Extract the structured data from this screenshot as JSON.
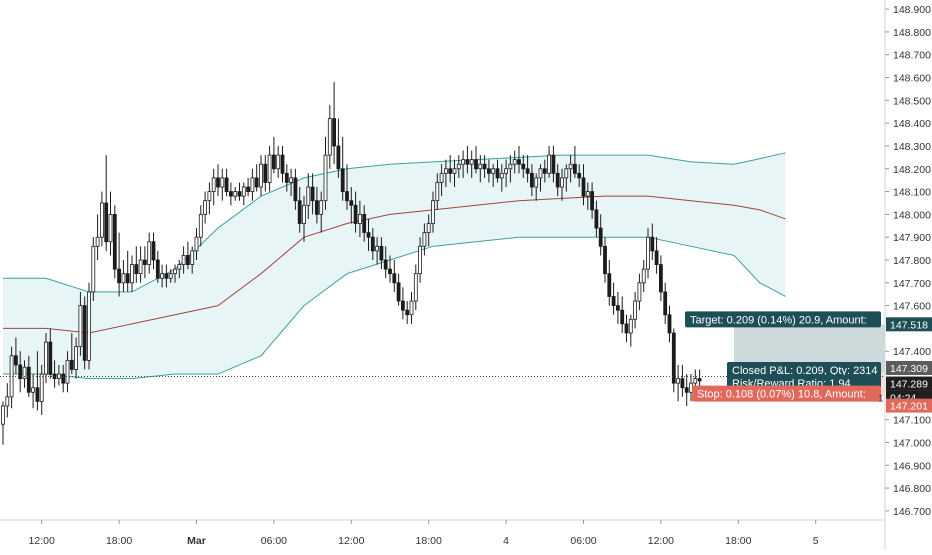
{
  "colors": {
    "candle": "#1c1c1c",
    "band_fill": "#e8f5f7",
    "band_line": "#3aa39a",
    "mid_line": "#a0453d",
    "target_zone": "#c4d4d6",
    "stop_zone": "#f7d9d6",
    "target_label": "#1e4f57",
    "stop_label": "#e0695c",
    "dark_label": "#1f1f1f",
    "axis_text": "#333333"
  },
  "chart_data": {
    "type": "candlestick",
    "y_axis": {
      "min": 146.66,
      "max": 148.94,
      "ticks": [
        "148.900",
        "148.800",
        "148.700",
        "148.600",
        "148.500",
        "148.400",
        "148.300",
        "148.200",
        "148.100",
        "148.000",
        "147.900",
        "147.800",
        "147.700",
        "147.600",
        "147.400",
        "147.100",
        "147.000",
        "146.900",
        "146.800",
        "146.700"
      ]
    },
    "x_axis": {
      "ticks": [
        {
          "label": "12:00",
          "i": 9
        },
        {
          "label": "18:00",
          "i": 27
        },
        {
          "label": "Mar",
          "i": 45,
          "bold": true
        },
        {
          "label": "06:00",
          "i": 63
        },
        {
          "label": "12:00",
          "i": 81
        },
        {
          "label": "18:00",
          "i": 99
        },
        {
          "label": "4",
          "i": 117
        },
        {
          "label": "06:00",
          "i": 135
        },
        {
          "label": "12:00",
          "i": 153
        },
        {
          "label": "18:00",
          "i": 171
        },
        {
          "label": "5",
          "i": 189
        }
      ]
    },
    "candles": [
      [
        147.08,
        147.18,
        146.99,
        147.16
      ],
      [
        147.16,
        147.26,
        147.11,
        147.2
      ],
      [
        147.2,
        147.42,
        147.15,
        147.38
      ],
      [
        147.38,
        147.46,
        147.3,
        147.34
      ],
      [
        147.34,
        147.4,
        147.22,
        147.28
      ],
      [
        147.28,
        147.36,
        147.24,
        147.33
      ],
      [
        147.33,
        147.38,
        147.2,
        147.22
      ],
      [
        147.22,
        147.3,
        147.15,
        147.24
      ],
      [
        147.24,
        147.4,
        147.14,
        147.18
      ],
      [
        147.18,
        147.34,
        147.12,
        147.3
      ],
      [
        147.3,
        147.48,
        147.26,
        147.44
      ],
      [
        147.44,
        147.5,
        147.28,
        147.3
      ],
      [
        147.3,
        147.36,
        147.24,
        147.28
      ],
      [
        147.28,
        147.34,
        147.25,
        147.3
      ],
      [
        147.3,
        147.34,
        147.22,
        147.26
      ],
      [
        147.26,
        147.4,
        147.22,
        147.36
      ],
      [
        147.36,
        147.48,
        147.3,
        147.32
      ],
      [
        147.32,
        147.46,
        147.28,
        147.42
      ],
      [
        147.42,
        147.66,
        147.38,
        147.6
      ],
      [
        147.6,
        147.64,
        147.32,
        147.36
      ],
      [
        147.36,
        147.7,
        147.32,
        147.66
      ],
      [
        147.66,
        147.9,
        147.62,
        147.86
      ],
      [
        147.86,
        148.0,
        147.8,
        147.9
      ],
      [
        147.9,
        148.1,
        147.86,
        148.05
      ],
      [
        148.05,
        148.26,
        147.84,
        147.88
      ],
      [
        147.88,
        148.1,
        147.82,
        148.0
      ],
      [
        148.0,
        148.04,
        147.72,
        147.76
      ],
      [
        147.76,
        147.92,
        147.64,
        147.7
      ],
      [
        147.7,
        147.8,
        147.66,
        147.74
      ],
      [
        147.74,
        147.84,
        147.66,
        147.7
      ],
      [
        147.7,
        147.82,
        147.66,
        147.78
      ],
      [
        147.78,
        147.86,
        147.7,
        147.74
      ],
      [
        147.74,
        147.86,
        147.7,
        147.8
      ],
      [
        147.8,
        147.86,
        147.72,
        147.78
      ],
      [
        147.78,
        147.92,
        147.74,
        147.88
      ],
      [
        147.88,
        147.92,
        147.76,
        147.8
      ],
      [
        147.8,
        147.84,
        147.7,
        147.72
      ],
      [
        147.72,
        147.78,
        147.68,
        147.74
      ],
      [
        147.74,
        147.78,
        147.68,
        147.72
      ],
      [
        147.72,
        147.76,
        147.7,
        147.74
      ],
      [
        147.74,
        147.78,
        147.7,
        147.76
      ],
      [
        147.76,
        147.8,
        147.72,
        147.78
      ],
      [
        147.78,
        147.86,
        147.74,
        147.82
      ],
      [
        147.82,
        147.88,
        147.76,
        147.78
      ],
      [
        147.78,
        147.86,
        147.74,
        147.84
      ],
      [
        147.84,
        147.94,
        147.8,
        147.9
      ],
      [
        147.9,
        148.04,
        147.86,
        148.0
      ],
      [
        148.0,
        148.1,
        147.96,
        148.06
      ],
      [
        148.06,
        148.14,
        148.0,
        148.1
      ],
      [
        148.1,
        148.2,
        148.04,
        148.16
      ],
      [
        148.16,
        148.22,
        148.08,
        148.12
      ],
      [
        148.12,
        148.2,
        148.06,
        148.16
      ],
      [
        148.16,
        148.2,
        148.08,
        148.1
      ],
      [
        148.1,
        148.14,
        148.04,
        148.08
      ],
      [
        148.08,
        148.12,
        148.06,
        148.1
      ],
      [
        148.1,
        148.14,
        148.06,
        148.08
      ],
      [
        148.08,
        148.14,
        148.04,
        148.12
      ],
      [
        148.12,
        148.16,
        148.08,
        148.1
      ],
      [
        148.1,
        148.2,
        148.06,
        148.16
      ],
      [
        148.16,
        148.22,
        148.1,
        148.12
      ],
      [
        148.12,
        148.26,
        148.08,
        148.22
      ],
      [
        148.22,
        148.26,
        148.1,
        148.14
      ],
      [
        148.14,
        148.3,
        148.1,
        148.26
      ],
      [
        148.26,
        148.34,
        148.18,
        148.2
      ],
      [
        148.2,
        148.3,
        148.16,
        148.26
      ],
      [
        148.26,
        148.3,
        148.14,
        148.18
      ],
      [
        148.18,
        148.22,
        148.1,
        148.14
      ],
      [
        148.14,
        148.2,
        148.08,
        148.16
      ],
      [
        148.16,
        148.2,
        148.02,
        148.06
      ],
      [
        148.06,
        148.12,
        147.92,
        147.96
      ],
      [
        147.96,
        148.08,
        147.88,
        148.04
      ],
      [
        148.04,
        148.18,
        147.98,
        148.12
      ],
      [
        148.12,
        148.18,
        148.0,
        148.06
      ],
      [
        148.06,
        148.12,
        147.96,
        148.0
      ],
      [
        148.0,
        148.1,
        147.92,
        148.06
      ],
      [
        148.06,
        148.34,
        148.02,
        148.26
      ],
      [
        148.26,
        148.48,
        148.2,
        148.42
      ],
      [
        148.42,
        148.58,
        148.22,
        148.3
      ],
      [
        148.3,
        148.42,
        148.16,
        148.2
      ],
      [
        148.2,
        148.34,
        148.06,
        148.1
      ],
      [
        148.1,
        148.22,
        148.02,
        148.06
      ],
      [
        148.06,
        148.12,
        147.96,
        148.04
      ],
      [
        148.04,
        148.1,
        147.92,
        147.96
      ],
      [
        147.96,
        148.06,
        147.9,
        148.0
      ],
      [
        148.0,
        148.04,
        147.88,
        147.92
      ],
      [
        147.92,
        147.98,
        147.84,
        147.9
      ],
      [
        147.9,
        147.94,
        147.8,
        147.84
      ],
      [
        147.84,
        147.9,
        147.78,
        147.86
      ],
      [
        147.86,
        147.9,
        147.76,
        147.8
      ],
      [
        147.8,
        147.86,
        147.72,
        147.76
      ],
      [
        147.76,
        147.82,
        147.7,
        147.74
      ],
      [
        147.74,
        147.8,
        147.66,
        147.7
      ],
      [
        147.7,
        147.74,
        147.6,
        147.62
      ],
      [
        147.62,
        147.68,
        147.54,
        147.58
      ],
      [
        147.58,
        147.62,
        147.52,
        147.56
      ],
      [
        147.56,
        147.66,
        147.52,
        147.62
      ],
      [
        147.62,
        147.78,
        147.58,
        147.74
      ],
      [
        147.74,
        147.9,
        147.7,
        147.86
      ],
      [
        147.86,
        147.96,
        147.82,
        147.92
      ],
      [
        147.92,
        148.0,
        147.86,
        147.96
      ],
      [
        147.96,
        148.1,
        147.92,
        148.06
      ],
      [
        148.06,
        148.18,
        148.02,
        148.14
      ],
      [
        148.14,
        148.22,
        148.08,
        148.18
      ],
      [
        148.18,
        148.24,
        148.12,
        148.2
      ],
      [
        148.2,
        148.26,
        148.14,
        148.18
      ],
      [
        148.18,
        148.24,
        148.12,
        148.2
      ],
      [
        148.2,
        148.26,
        148.16,
        148.22
      ],
      [
        148.22,
        148.28,
        148.16,
        148.24
      ],
      [
        148.24,
        148.3,
        148.18,
        148.22
      ],
      [
        148.22,
        148.28,
        148.16,
        148.24
      ],
      [
        148.24,
        148.3,
        148.18,
        148.2
      ],
      [
        148.2,
        148.26,
        148.14,
        148.22
      ],
      [
        148.22,
        148.26,
        148.16,
        148.2
      ],
      [
        148.2,
        148.24,
        148.14,
        148.18
      ],
      [
        148.18,
        148.22,
        148.12,
        148.2
      ],
      [
        148.2,
        148.24,
        148.14,
        148.16
      ],
      [
        148.16,
        148.22,
        148.1,
        148.18
      ],
      [
        148.18,
        148.24,
        148.12,
        148.2
      ],
      [
        148.2,
        148.26,
        148.14,
        148.22
      ],
      [
        148.22,
        148.28,
        148.18,
        148.24
      ],
      [
        148.24,
        148.3,
        148.18,
        148.22
      ],
      [
        148.22,
        148.26,
        148.16,
        148.2
      ],
      [
        148.2,
        148.26,
        148.14,
        148.18
      ],
      [
        148.18,
        148.22,
        148.08,
        148.12
      ],
      [
        148.12,
        148.18,
        148.06,
        148.16
      ],
      [
        148.16,
        148.22,
        148.1,
        148.2
      ],
      [
        148.2,
        148.24,
        148.14,
        148.18
      ],
      [
        148.18,
        148.3,
        148.16,
        148.26
      ],
      [
        148.26,
        148.3,
        148.14,
        148.18
      ],
      [
        148.18,
        148.22,
        148.08,
        148.12
      ],
      [
        148.12,
        148.2,
        148.06,
        148.16
      ],
      [
        148.16,
        148.22,
        148.1,
        148.2
      ],
      [
        148.2,
        148.26,
        148.14,
        148.22
      ],
      [
        148.22,
        148.3,
        148.16,
        148.18
      ],
      [
        148.18,
        148.22,
        148.12,
        148.16
      ],
      [
        148.16,
        148.22,
        148.04,
        148.08
      ],
      [
        148.08,
        148.14,
        148.02,
        148.1
      ],
      [
        148.1,
        148.14,
        147.98,
        148.02
      ],
      [
        148.02,
        148.06,
        147.9,
        147.94
      ],
      [
        147.94,
        148.0,
        147.82,
        147.86
      ],
      [
        147.86,
        147.9,
        147.7,
        147.74
      ],
      [
        147.74,
        147.8,
        147.6,
        147.64
      ],
      [
        147.64,
        147.7,
        147.56,
        147.6
      ],
      [
        147.6,
        147.66,
        147.52,
        147.58
      ],
      [
        147.58,
        147.64,
        147.48,
        147.52
      ],
      [
        147.52,
        147.56,
        147.44,
        147.48
      ],
      [
        147.48,
        147.56,
        147.42,
        147.54
      ],
      [
        147.54,
        147.66,
        147.5,
        147.62
      ],
      [
        147.62,
        147.74,
        147.58,
        147.7
      ],
      [
        147.7,
        147.8,
        147.66,
        147.76
      ],
      [
        147.76,
        147.94,
        147.72,
        147.9
      ],
      [
        147.9,
        147.96,
        147.8,
        147.84
      ],
      [
        147.84,
        147.9,
        147.74,
        147.78
      ],
      [
        147.78,
        147.82,
        147.62,
        147.66
      ],
      [
        147.66,
        147.7,
        147.52,
        147.56
      ],
      [
        147.56,
        147.6,
        147.44,
        147.48
      ],
      [
        147.48,
        147.5,
        147.22,
        147.26
      ],
      [
        147.26,
        147.34,
        147.18,
        147.28
      ],
      [
        147.28,
        147.34,
        147.2,
        147.24
      ],
      [
        147.24,
        147.3,
        147.16,
        147.22
      ],
      [
        147.22,
        147.3,
        147.18,
        147.26
      ],
      [
        147.26,
        147.32,
        147.2,
        147.28
      ],
      [
        147.28,
        147.32,
        147.22,
        147.27
      ]
    ],
    "band_upper": [
      [
        0,
        147.72
      ],
      [
        10,
        147.72
      ],
      [
        20,
        147.66
      ],
      [
        30,
        147.66
      ],
      [
        40,
        147.76
      ],
      [
        50,
        147.94
      ],
      [
        60,
        148.08
      ],
      [
        70,
        148.16
      ],
      [
        80,
        148.2
      ],
      [
        90,
        148.22
      ],
      [
        100,
        148.23
      ],
      [
        110,
        148.24
      ],
      [
        120,
        148.25
      ],
      [
        130,
        148.26
      ],
      [
        140,
        148.26
      ],
      [
        150,
        148.26
      ],
      [
        160,
        148.23
      ],
      [
        170,
        148.22
      ],
      [
        175,
        148.24
      ],
      [
        182,
        148.27
      ]
    ],
    "band_mid": [
      [
        0,
        147.5
      ],
      [
        10,
        147.5
      ],
      [
        20,
        147.48
      ],
      [
        30,
        147.52
      ],
      [
        40,
        147.56
      ],
      [
        50,
        147.6
      ],
      [
        60,
        147.74
      ],
      [
        70,
        147.9
      ],
      [
        80,
        147.96
      ],
      [
        90,
        148.0
      ],
      [
        100,
        148.02
      ],
      [
        110,
        148.04
      ],
      [
        120,
        148.06
      ],
      [
        130,
        148.07
      ],
      [
        140,
        148.08
      ],
      [
        150,
        148.08
      ],
      [
        160,
        148.06
      ],
      [
        170,
        148.04
      ],
      [
        176,
        148.02
      ],
      [
        182,
        147.98
      ]
    ],
    "band_lower": [
      [
        0,
        147.3
      ],
      [
        10,
        147.3
      ],
      [
        20,
        147.28
      ],
      [
        30,
        147.28
      ],
      [
        40,
        147.3
      ],
      [
        50,
        147.3
      ],
      [
        60,
        147.38
      ],
      [
        70,
        147.6
      ],
      [
        80,
        147.74
      ],
      [
        90,
        147.8
      ],
      [
        100,
        147.86
      ],
      [
        110,
        147.88
      ],
      [
        120,
        147.9
      ],
      [
        130,
        147.9
      ],
      [
        140,
        147.9
      ],
      [
        150,
        147.9
      ],
      [
        160,
        147.86
      ],
      [
        170,
        147.82
      ],
      [
        176,
        147.7
      ],
      [
        182,
        147.64
      ]
    ],
    "position": {
      "start_i": 170,
      "end_i": 211,
      "entry": 147.309,
      "target": 147.518,
      "stop": 147.201,
      "current": 147.289
    },
    "price_labels": {
      "target": "147.518",
      "entry": "147.309",
      "current": "147.289",
      "countdown": "04:24",
      "stop": "147.201",
      "current_hidden": "1"
    },
    "texts": {
      "target": "Target: 0.209 (0.14%) 20.9, Amount:",
      "closed": "Closed P&L: 0.209, Qty: 2314",
      "ratio": "Risk/Reward Ratio: 1.94",
      "stop": "Stop: 0.108 (0.07%) 10.8, Amount:"
    }
  }
}
